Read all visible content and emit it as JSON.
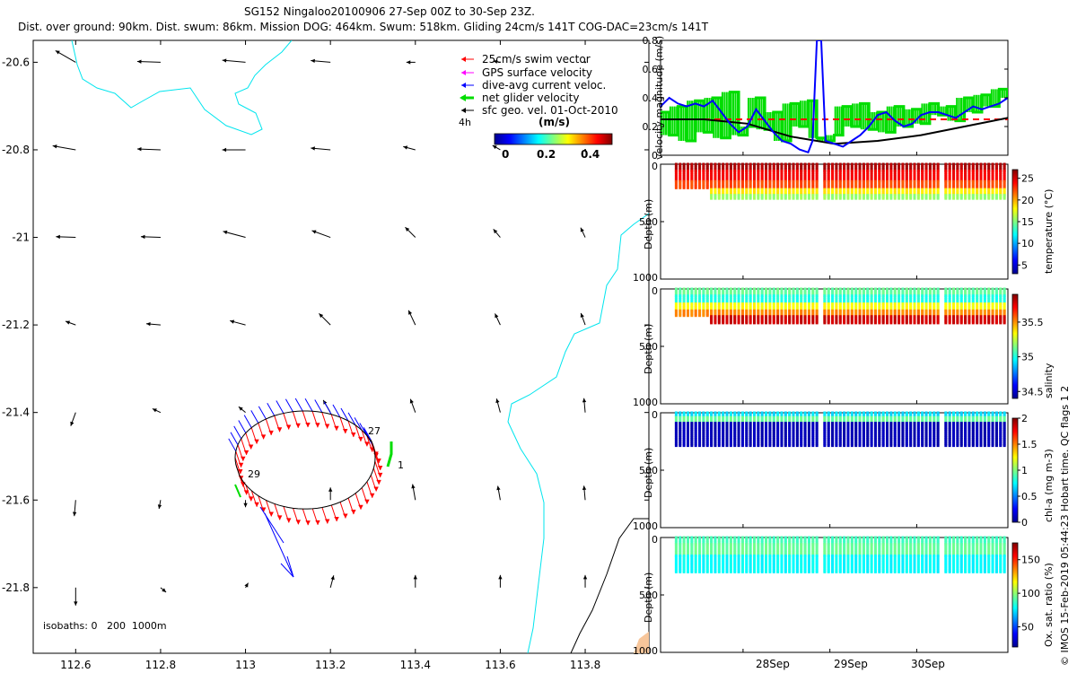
{
  "header": {
    "title": "SG152 Ningaloo20100906 27-Sep 00Z to 30-Sep 23Z.",
    "subtitle": "Dist. over ground: 90km. Dist. swum: 86km. Mission DOG: 464km. Swum: 518km. Gliding 24cm/s 141T COG-DAC=23cm/s 141T"
  },
  "colors": {
    "swim": "#ff0000",
    "gps": "#ff00ff",
    "dac": "#0000ff",
    "net": "#00dd00",
    "sfc": "#000000",
    "coast": "#00e5ee",
    "iso": "#000000",
    "land": "#f7c69b",
    "dash": "#ff0000"
  },
  "map": {
    "legend": [
      {
        "label": "25cm/s swim vector",
        "color": "#ff0000"
      },
      {
        "label": "GPS surface velocity",
        "color": "#ff00ff"
      },
      {
        "label": "dive-avg current veloc.",
        "color": "#0000ff"
      },
      {
        "label": "net glider velocity",
        "color": "#00dd00"
      },
      {
        "label": "sfc geo. vel. 01-Oct-2010",
        "color": "#000000"
      }
    ],
    "colorbar": {
      "time_label": "4h",
      "unit": "(m/s)",
      "ticks": [
        "0",
        "0.2",
        "0.4"
      ]
    },
    "x_ticks": [
      "112.6",
      "112.8",
      "113",
      "113.2",
      "113.4",
      "113.6",
      "113.8"
    ],
    "y_ticks": [
      "-20.6",
      "-20.8",
      "-21",
      "-21.2",
      "-21.4",
      "-21.6",
      "-21.8"
    ],
    "xlim": [
      112.5,
      113.95
    ],
    "ylim": [
      -21.95,
      -20.55
    ],
    "day_labels": [
      "27",
      "1",
      "29"
    ],
    "isobaths": "isobaths: 0   200  1000m"
  },
  "chart_data": [
    {
      "type": "line",
      "title": "velocity magnitude",
      "ylabel": "velocity magnitude (m/s)",
      "ylim": [
        0,
        0.8
      ],
      "yticks": [
        "0",
        "0.2",
        "0.4",
        "0.6",
        "0.8"
      ],
      "x_day_ticks": [
        "28Sep",
        "29Sep",
        "30Sep"
      ],
      "series": [
        {
          "name": "dive-avg current",
          "color": "#0000ff",
          "x": [
            0,
            0.1,
            0.2,
            0.3,
            0.4,
            0.5,
            0.6,
            0.7,
            0.8,
            0.9,
            1.0,
            1.1,
            1.2,
            1.3,
            1.4,
            1.5,
            1.6,
            1.7,
            1.75,
            1.8,
            1.85,
            1.9,
            2.0,
            2.1,
            2.2,
            2.3,
            2.4,
            2.5,
            2.6,
            2.7,
            2.8,
            2.9,
            3.0,
            3.1,
            3.2,
            3.3,
            3.4,
            3.5,
            3.6,
            3.7,
            3.8,
            3.9,
            4.0
          ],
          "y": [
            0.34,
            0.4,
            0.36,
            0.34,
            0.36,
            0.34,
            0.38,
            0.3,
            0.22,
            0.16,
            0.2,
            0.32,
            0.24,
            0.16,
            0.1,
            0.08,
            0.04,
            0.02,
            0.1,
            0.8,
            0.8,
            0.1,
            0.08,
            0.06,
            0.1,
            0.14,
            0.2,
            0.28,
            0.3,
            0.24,
            0.2,
            0.22,
            0.28,
            0.3,
            0.3,
            0.28,
            0.26,
            0.3,
            0.34,
            0.32,
            0.34,
            0.36,
            0.4
          ]
        },
        {
          "name": "sfc geo. velocity",
          "color": "#000000",
          "x": [
            0,
            0.5,
            1.0,
            1.5,
            2.0,
            2.5,
            3.0,
            3.5,
            4.0
          ],
          "y": [
            0.25,
            0.25,
            0.22,
            0.13,
            0.08,
            0.1,
            0.14,
            0.2,
            0.26
          ]
        },
        {
          "name": "net glider velocity",
          "color": "#00dd00",
          "x": [
            0,
            0.1,
            0.2,
            0.3,
            0.4,
            0.5,
            0.6,
            0.7,
            0.8,
            0.9,
            1.0,
            1.1,
            1.2,
            1.3,
            1.4,
            1.5,
            1.6,
            1.7,
            1.8,
            1.9,
            2.0,
            2.1,
            2.2,
            2.3,
            2.4,
            2.5,
            2.6,
            2.7,
            2.8,
            2.9,
            3.0,
            3.1,
            3.2,
            3.3,
            3.4,
            3.5,
            3.6,
            3.7,
            3.8,
            3.9,
            4.0
          ],
          "y": [
            0.3,
            0.14,
            0.34,
            0.1,
            0.38,
            0.16,
            0.4,
            0.12,
            0.44,
            0.14,
            0.2,
            0.4,
            0.18,
            0.3,
            0.1,
            0.36,
            0.2,
            0.38,
            0.12,
            0.1,
            0.14,
            0.34,
            0.2,
            0.36,
            0.18,
            0.3,
            0.16,
            0.34,
            0.2,
            0.32,
            0.22,
            0.36,
            0.28,
            0.34,
            0.24,
            0.4,
            0.3,
            0.42,
            0.34,
            0.46,
            0.4
          ]
        },
        {
          "name": "reference 25cm/s",
          "color": "#ff0000",
          "x": [
            0,
            4.0
          ],
          "y": [
            0.25,
            0.25
          ]
        }
      ]
    },
    {
      "type": "scatter",
      "ylabel": "Depth (m)",
      "clabel": "temperature (°C)",
      "ylim": [
        1000,
        0
      ],
      "yticks": [
        "0",
        "500",
        "1000"
      ],
      "cticks": [
        "5",
        "10",
        "15",
        "20",
        "25"
      ],
      "crange": [
        3,
        27
      ]
    },
    {
      "type": "scatter",
      "ylabel": "Depth (m)",
      "clabel": "salinity",
      "ylim": [
        1000,
        0
      ],
      "yticks": [
        "0",
        "500",
        "1000"
      ],
      "cticks": [
        "34.5",
        "35",
        "35.5"
      ],
      "crange": [
        34.4,
        35.9
      ]
    },
    {
      "type": "scatter",
      "ylabel": "Depth (m)",
      "clabel": "chl-a (mg m-3)",
      "ylim": [
        1000,
        0
      ],
      "yticks": [
        "0",
        "500",
        "1000"
      ],
      "cticks": [
        "0",
        "0.5",
        "1",
        "1.5",
        "2"
      ],
      "crange": [
        0,
        2
      ]
    },
    {
      "type": "scatter",
      "ylabel": "Depth (m)",
      "clabel": "Ox. sat. ratio (%)",
      "ylim": [
        1000,
        0
      ],
      "yticks": [
        "0",
        "500",
        "1000"
      ],
      "cticks": [
        "50",
        "100",
        "150"
      ],
      "crange": [
        20,
        175
      ]
    }
  ],
  "side": {
    "qc_flags": "Hobart time. QC flags 1  2",
    "credit": "© IMOS 15-Feb-2019 05:44:23"
  }
}
